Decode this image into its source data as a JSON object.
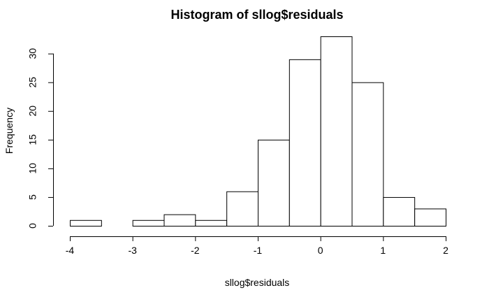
{
  "chart_data": {
    "type": "bar",
    "title": "Histogram of sllog$residuals",
    "xlabel": "sllog$residuals",
    "ylabel": "Frequency",
    "bins": [
      {
        "from": -4.0,
        "to": -3.5,
        "count": 1
      },
      {
        "from": -3.5,
        "to": -3.0,
        "count": 0
      },
      {
        "from": -3.0,
        "to": -2.5,
        "count": 1
      },
      {
        "from": -2.5,
        "to": -2.0,
        "count": 2
      },
      {
        "from": -2.0,
        "to": -1.5,
        "count": 1
      },
      {
        "from": -1.5,
        "to": -1.0,
        "count": 6
      },
      {
        "from": -1.0,
        "to": -0.5,
        "count": 15
      },
      {
        "from": -0.5,
        "to": 0.0,
        "count": 29
      },
      {
        "from": 0.0,
        "to": 0.5,
        "count": 33
      },
      {
        "from": 0.5,
        "to": 1.0,
        "count": 25
      },
      {
        "from": 1.0,
        "to": 1.5,
        "count": 5
      },
      {
        "from": 1.5,
        "to": 2.0,
        "count": 3
      }
    ],
    "x_ticks": [
      -4,
      -3,
      -2,
      -1,
      0,
      1,
      2
    ],
    "y_ticks": [
      0,
      5,
      10,
      15,
      20,
      25,
      30
    ],
    "xlim": [
      -4,
      2
    ],
    "ylim": [
      0,
      33
    ],
    "grid": false,
    "bar_fill": "#ffffff",
    "bar_stroke": "#000000"
  }
}
